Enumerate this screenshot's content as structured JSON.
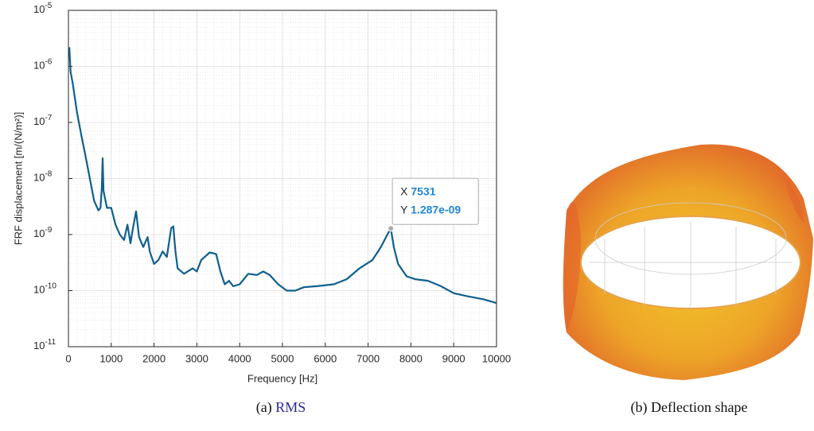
{
  "chart_data": {
    "type": "line",
    "log_y": true,
    "grid": true,
    "minor_grid": true,
    "xlabel": "Frequency [Hz]",
    "ylabel": "FRF displacement [m/(N/m²)]",
    "xlim": [
      0,
      10000
    ],
    "xticks": [
      0,
      1000,
      2000,
      3000,
      4000,
      5000,
      6000,
      7000,
      8000,
      9000,
      10000
    ],
    "ylim": [
      1e-11,
      1e-05
    ],
    "yticks": [
      {
        "value": 1e-11,
        "label": "10",
        "exponent": "-11"
      },
      {
        "value": 1e-10,
        "label": "10",
        "exponent": "-10"
      },
      {
        "value": 1e-09,
        "label": "10",
        "exponent": "-9"
      },
      {
        "value": 1e-08,
        "label": "10",
        "exponent": "-8"
      },
      {
        "value": 1e-07,
        "label": "10",
        "exponent": "-7"
      },
      {
        "value": 1e-06,
        "label": "10",
        "exponent": "-6"
      },
      {
        "value": 1e-05,
        "label": "10",
        "exponent": "-5"
      }
    ],
    "series": [
      {
        "color": "#0f5f8f",
        "x": [
          20,
          50,
          100,
          200,
          300,
          400,
          500,
          600,
          700,
          750,
          780,
          800,
          820,
          900,
          950,
          1000,
          1100,
          1200,
          1300,
          1380,
          1450,
          1500,
          1580,
          1650,
          1750,
          1850,
          1900,
          2000,
          2100,
          2200,
          2300,
          2400,
          2450,
          2500,
          2550,
          2700,
          2900,
          3000,
          3100,
          3300,
          3450,
          3550,
          3650,
          3750,
          3850,
          4000,
          4200,
          4400,
          4550,
          4700,
          4900,
          5100,
          5300,
          5500,
          5800,
          6200,
          6500,
          6800,
          7100,
          7300,
          7450,
          7531,
          7600,
          7700,
          7900,
          8100,
          8400,
          8700,
          9000,
          9300,
          9700,
          10000
        ],
        "values": [
          2.2e-06,
          8e-07,
          5e-07,
          1.5e-07,
          6e-08,
          2.5e-08,
          1e-08,
          4e-09,
          2.7e-09,
          3e-09,
          7e-09,
          2.3e-08,
          6e-09,
          3e-09,
          3e-09,
          3e-09,
          1.5e-09,
          1e-09,
          8e-10,
          1.5e-09,
          7e-10,
          1.2e-09,
          2.6e-09,
          9e-10,
          6e-10,
          9e-10,
          5e-10,
          3e-10,
          3.5e-10,
          5e-10,
          4e-10,
          1.3e-09,
          1.4e-09,
          5e-10,
          2.5e-10,
          2e-10,
          2.5e-10,
          2.2e-10,
          3.5e-10,
          4.8e-10,
          4.5e-10,
          2.2e-10,
          1.3e-10,
          1.5e-10,
          1.2e-10,
          1.3e-10,
          2e-10,
          1.9e-10,
          2.2e-10,
          1.9e-10,
          1.3e-10,
          1e-10,
          1e-10,
          1.15e-10,
          1.2e-10,
          1.3e-10,
          1.6e-10,
          2.5e-10,
          3.5e-10,
          6e-10,
          1e-09,
          1.287e-09,
          6e-10,
          3e-10,
          1.8e-10,
          1.6e-10,
          1.5e-10,
          1.2e-10,
          9e-11,
          8e-11,
          7e-11,
          6e-11
        ]
      }
    ],
    "datatip": {
      "x_name": "X",
      "y_name": "Y",
      "x": 7531,
      "y": {
        "value": 1.287e-09,
        "label": "1.287e-09"
      }
    }
  },
  "captions": {
    "a_prefix": "(a)",
    "a_link": "RMS",
    "b": "(b) Deflection shape"
  }
}
